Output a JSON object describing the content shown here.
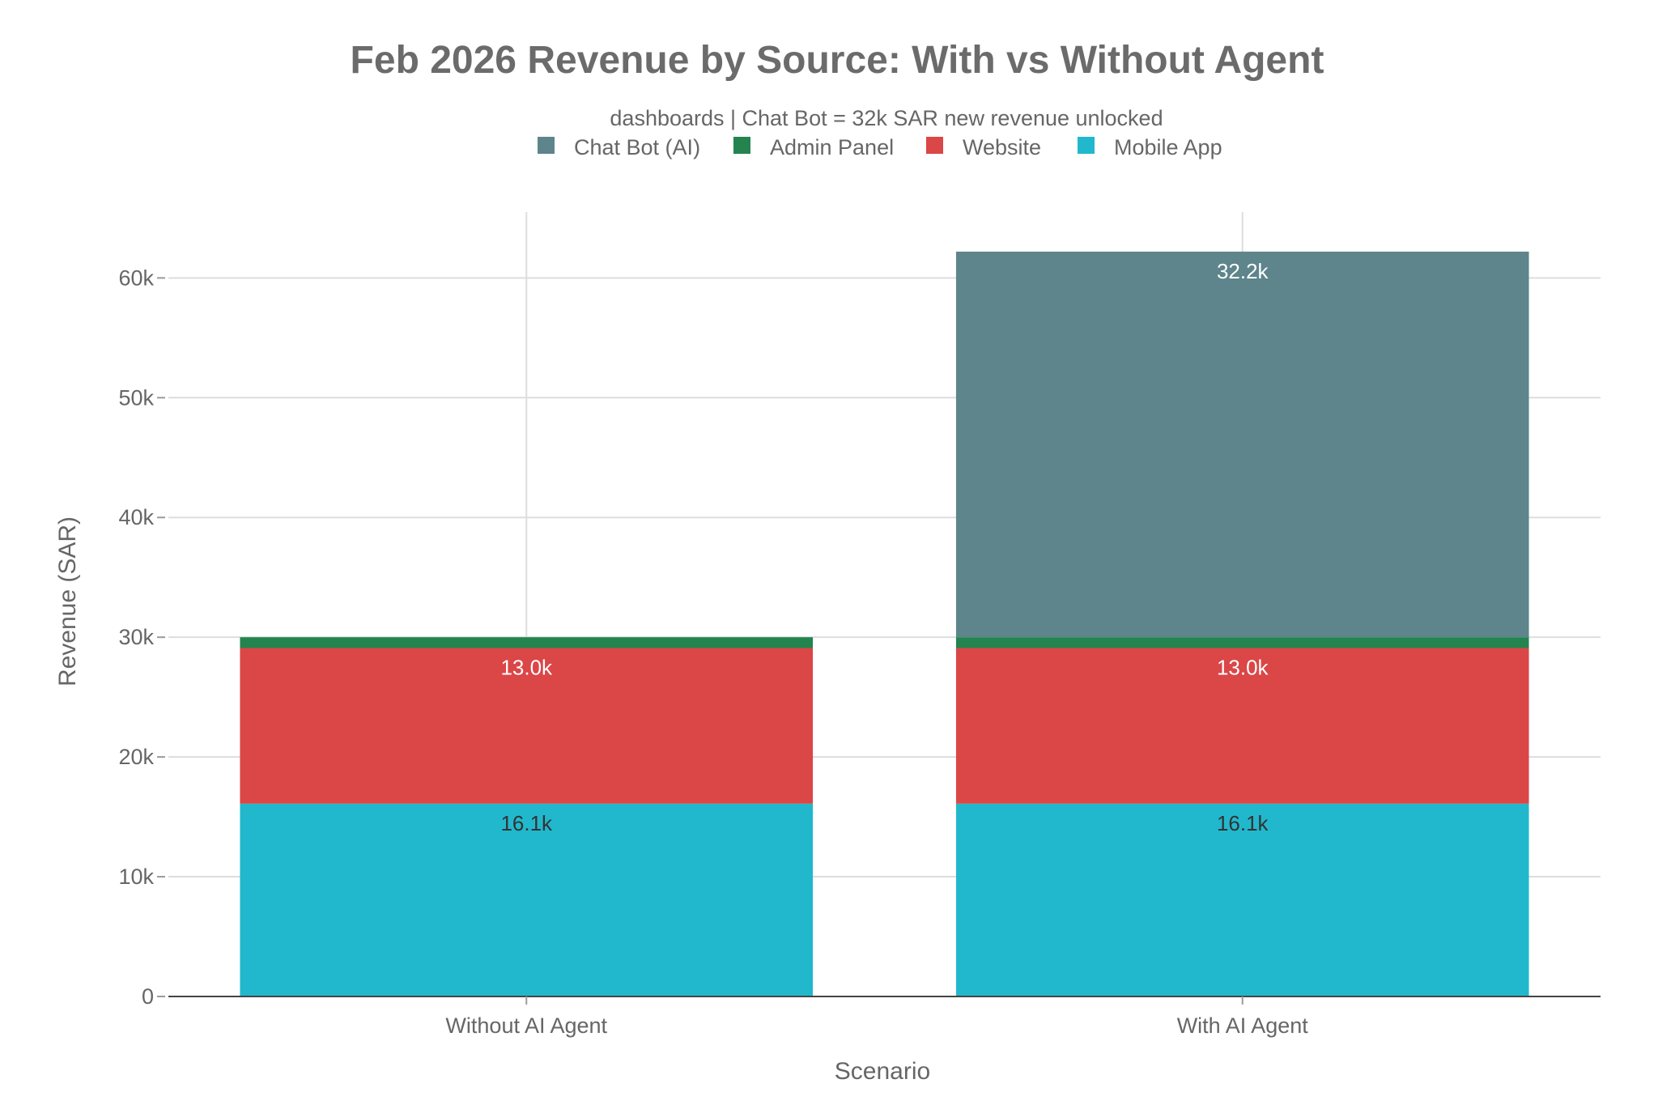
{
  "chart_data": {
    "type": "bar",
    "stacked": true,
    "title": "Feb 2026 Revenue by Source: With vs Without Agent",
    "subtitle": "dashboards | Chat Bot = 32k SAR new revenue unlocked",
    "xlabel": "Scenario",
    "ylabel": "Revenue (SAR)",
    "categories": [
      "Without AI Agent",
      "With AI Agent"
    ],
    "ylim": [
      0,
      65500
    ],
    "yticks": [
      0,
      10000,
      20000,
      30000,
      40000,
      50000,
      60000
    ],
    "ytick_labels": [
      "0",
      "10k",
      "20k",
      "30k",
      "40k",
      "50k",
      "60k"
    ],
    "grid": true,
    "legend_position": "top-center",
    "legend_order": [
      "Chat Bot (AI)",
      "Admin Panel",
      "Website",
      "Mobile App"
    ],
    "series": [
      {
        "name": "Mobile App",
        "color": "#21b8cd",
        "label_color": "#333333",
        "values": [
          16100,
          16100
        ],
        "labels": [
          "16.1k",
          "16.1k"
        ]
      },
      {
        "name": "Website",
        "color": "#db4646",
        "label_color": "#ffffff",
        "values": [
          13000,
          13000
        ],
        "labels": [
          "13.0k",
          "13.0k"
        ]
      },
      {
        "name": "Admin Panel",
        "color": "#23844f",
        "label_color": "#ffffff",
        "values": [
          900,
          900
        ],
        "labels": [
          "",
          ""
        ]
      },
      {
        "name": "Chat Bot (AI)",
        "color": "#5d858b",
        "label_color": "#ffffff",
        "values": [
          0,
          32200
        ],
        "labels": [
          "",
          "32.2k"
        ]
      }
    ]
  }
}
